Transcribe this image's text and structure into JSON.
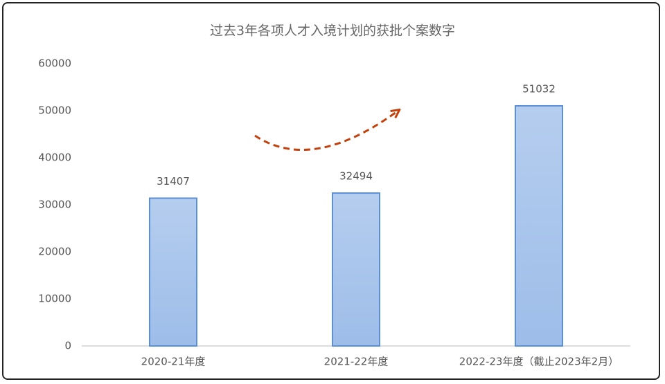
{
  "chart_data": {
    "type": "bar",
    "title": "过去3年各项人才入境计划的获批个案数字",
    "categories": [
      "2020-21年度",
      "2021-22年度",
      "2022-23年度（截止2023年2月）"
    ],
    "values": [
      31407,
      32494,
      51032
    ],
    "color": "#9dbde9",
    "ylim": [
      0,
      60000
    ],
    "yticks": [
      0,
      10000,
      20000,
      30000,
      40000,
      50000,
      60000
    ],
    "grid": false
  }
}
